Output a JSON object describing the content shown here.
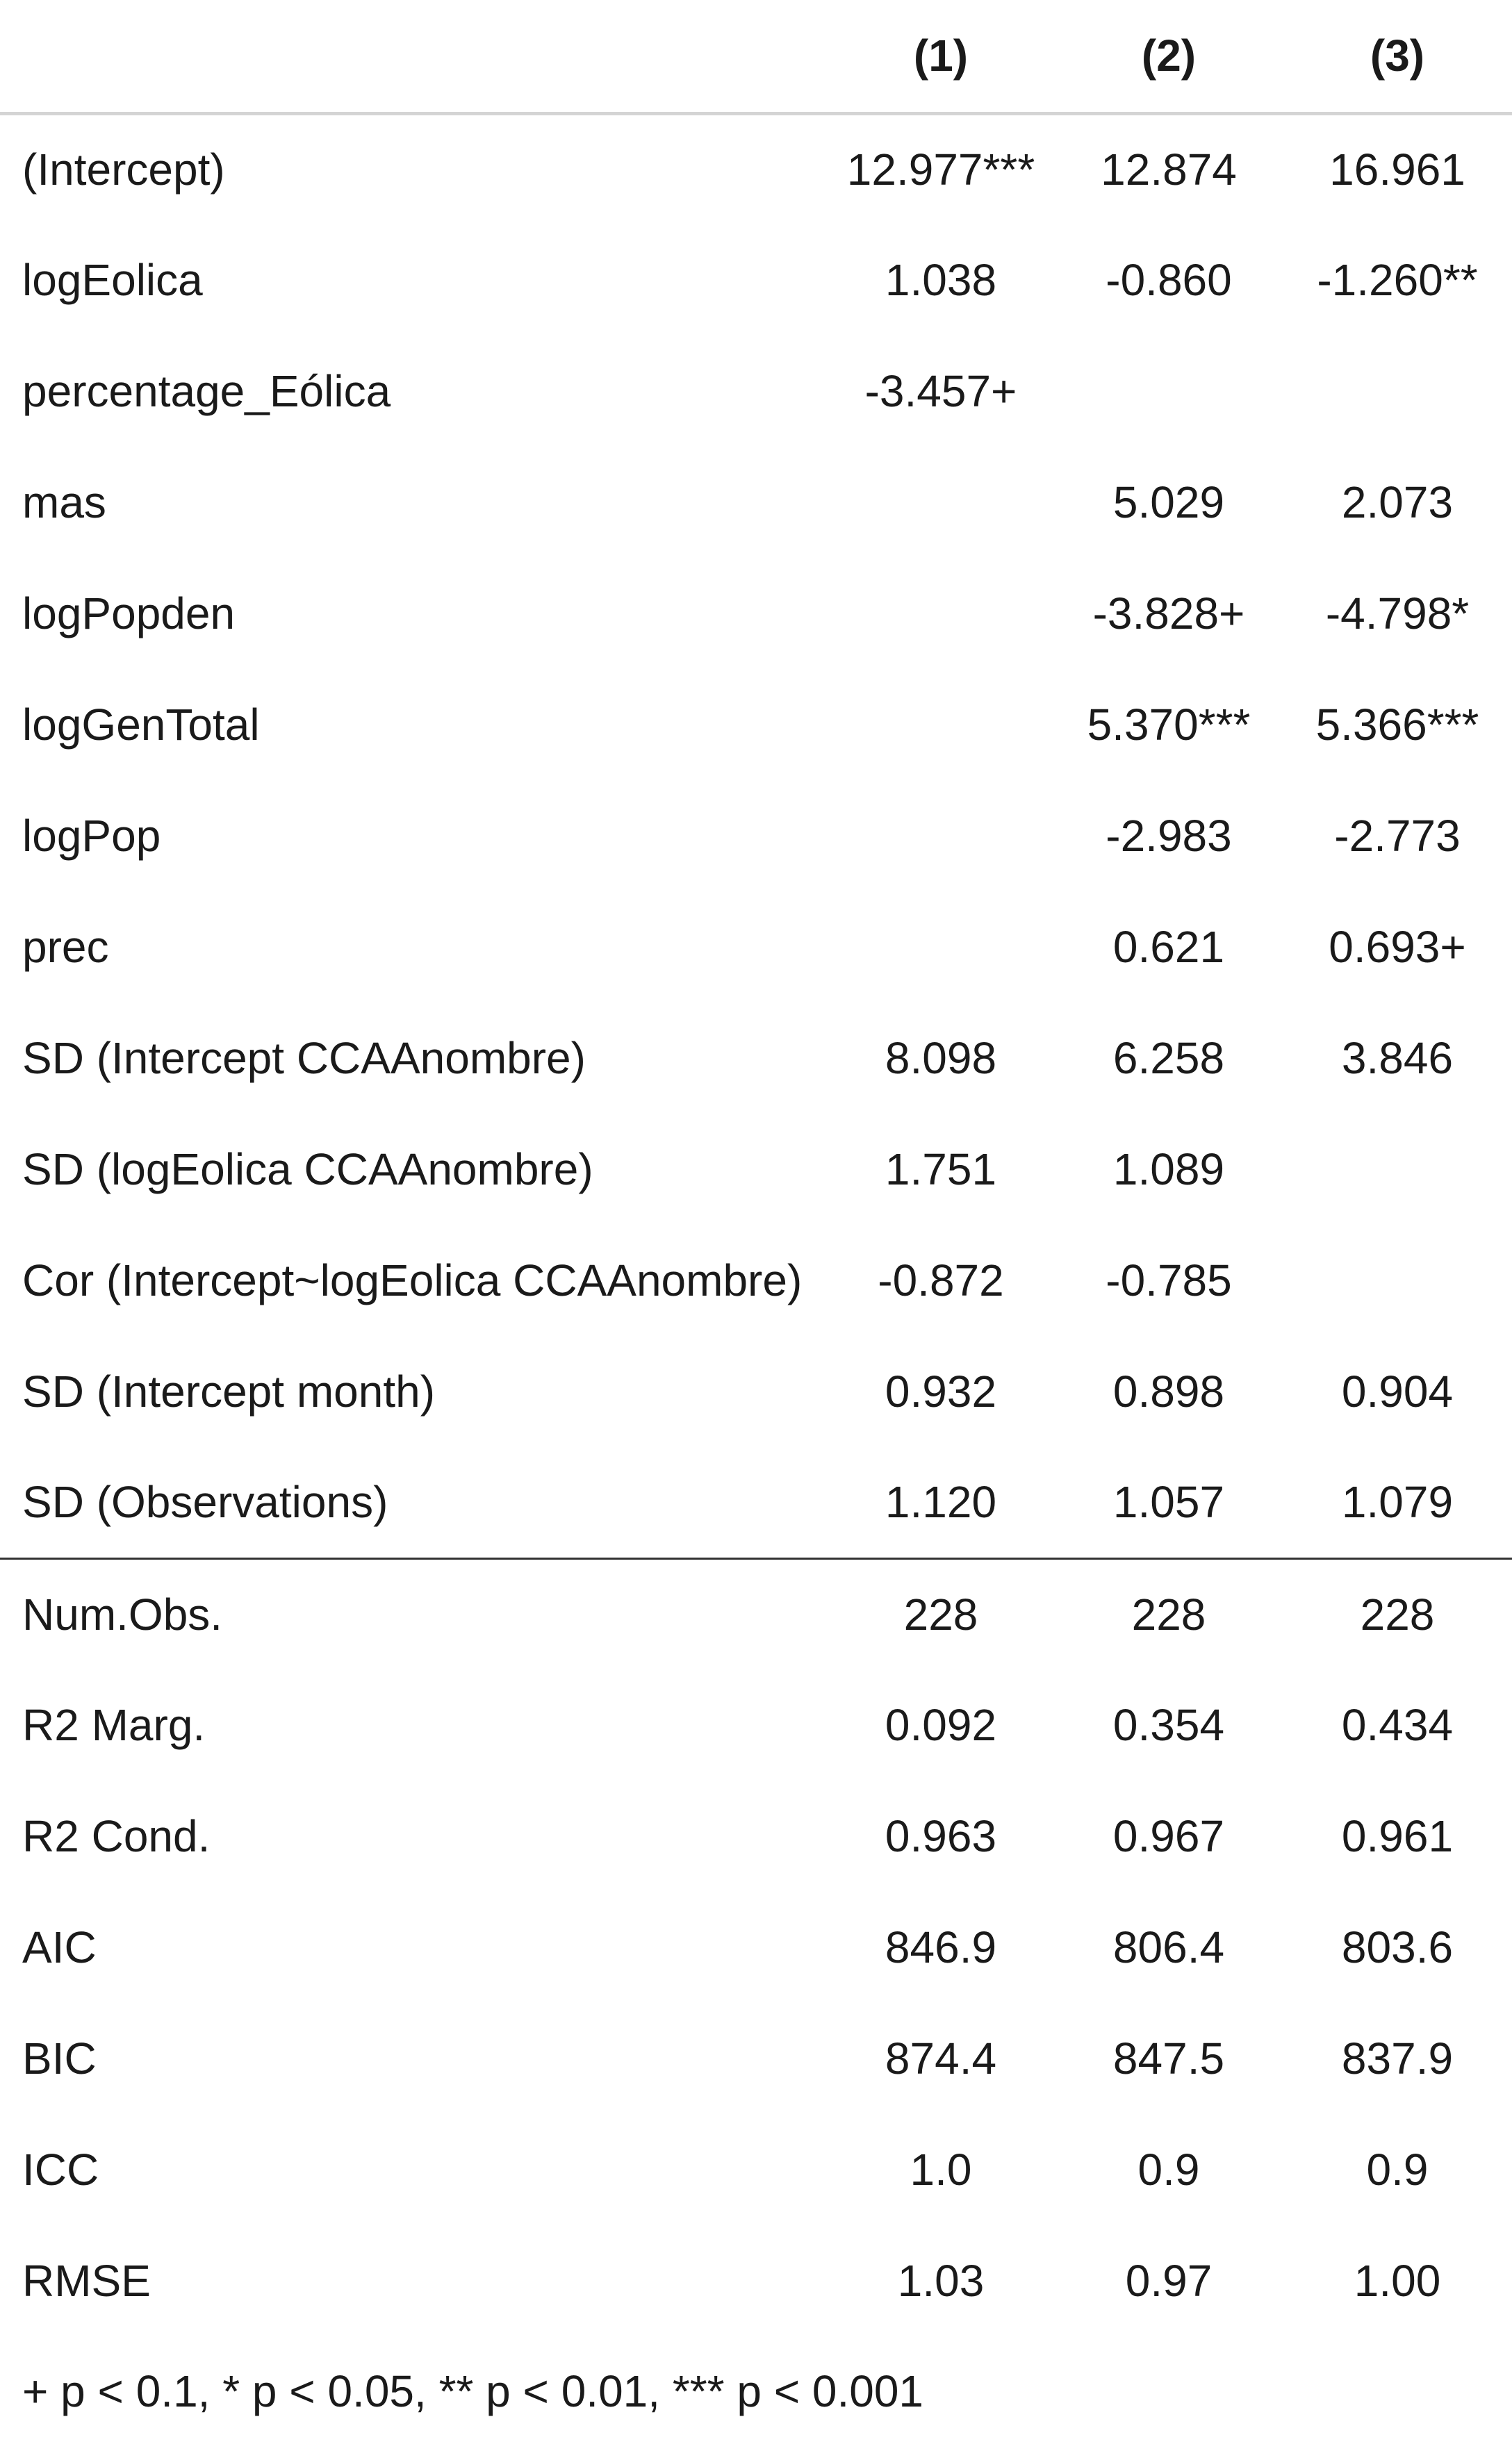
{
  "table": {
    "header": [
      "",
      "(1)",
      "(2)",
      "(3)"
    ],
    "coef_rows": [
      {
        "label": "(Intercept)",
        "values": [
          "12.977***",
          "12.874",
          "16.961"
        ]
      },
      {
        "label": "logEolica",
        "values": [
          "1.038",
          "-0.860",
          "-1.260**"
        ]
      },
      {
        "label": "percentage_Eólica",
        "values": [
          "-3.457+",
          "",
          ""
        ]
      },
      {
        "label": "mas",
        "values": [
          "",
          "5.029",
          "2.073"
        ]
      },
      {
        "label": "logPopden",
        "values": [
          "",
          "-3.828+",
          "-4.798*"
        ]
      },
      {
        "label": "logGenTotal",
        "values": [
          "",
          "5.370***",
          "5.366***"
        ]
      },
      {
        "label": "logPop",
        "values": [
          "",
          "-2.983",
          "-2.773"
        ]
      },
      {
        "label": "prec",
        "values": [
          "",
          "0.621",
          "0.693+"
        ]
      },
      {
        "label": "SD (Intercept CCAAnombre)",
        "values": [
          "8.098",
          "6.258",
          "3.846"
        ]
      },
      {
        "label": "SD (logEolica CCAAnombre)",
        "values": [
          "1.751",
          "1.089",
          ""
        ]
      },
      {
        "label": "Cor (Intercept~logEolica CCAAnombre)",
        "values": [
          "-0.872",
          "-0.785",
          ""
        ]
      },
      {
        "label": "SD (Intercept month)",
        "values": [
          "0.932",
          "0.898",
          "0.904"
        ]
      },
      {
        "label": "SD (Observations)",
        "values": [
          "1.120",
          "1.057",
          "1.079"
        ]
      }
    ],
    "gof_rows": [
      {
        "label": "Num.Obs.",
        "values": [
          "228",
          "228",
          "228"
        ]
      },
      {
        "label": "R2 Marg.",
        "values": [
          "0.092",
          "0.354",
          "0.434"
        ]
      },
      {
        "label": "R2 Cond.",
        "values": [
          "0.963",
          "0.967",
          "0.961"
        ]
      },
      {
        "label": "AIC",
        "values": [
          "846.9",
          "806.4",
          "803.6"
        ]
      },
      {
        "label": "BIC",
        "values": [
          "874.4",
          "847.5",
          "837.9"
        ]
      },
      {
        "label": "ICC",
        "values": [
          "1.0",
          "0.9",
          "0.9"
        ]
      },
      {
        "label": "RMSE",
        "values": [
          "1.03",
          "0.97",
          "1.00"
        ]
      }
    ]
  },
  "footnote": "+ p < 0.1, * p < 0.05, ** p < 0.01, *** p < 0.001"
}
